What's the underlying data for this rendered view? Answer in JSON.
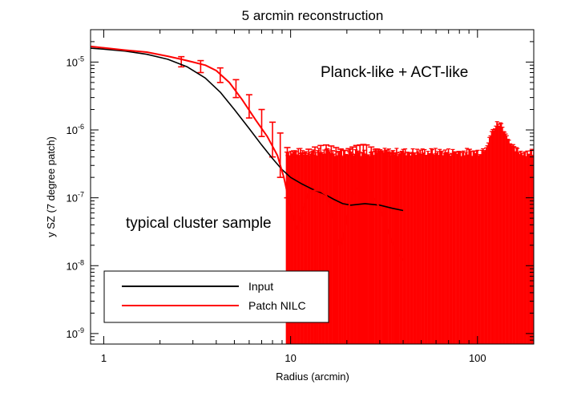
{
  "chart_data": {
    "type": "line",
    "title": "5 arcmin reconstruction",
    "xlabel": "Radius (arcmin)",
    "ylabel": "y SZ (7 degree patch)",
    "x_scale": "log",
    "y_scale": "log",
    "xlim": [
      0.85,
      200
    ],
    "ylim": [
      7e-10,
      3e-05
    ],
    "x_ticks": [
      {
        "value": 1,
        "label": "1"
      },
      {
        "value": 10,
        "label": "10"
      },
      {
        "value": 100,
        "label": "100"
      }
    ],
    "y_ticks": [
      {
        "value": 1e-09,
        "base": "10",
        "exp": "-9"
      },
      {
        "value": 1e-08,
        "base": "10",
        "exp": "-8"
      },
      {
        "value": 1e-07,
        "base": "10",
        "exp": "-7"
      },
      {
        "value": 1e-06,
        "base": "10",
        "exp": "-6"
      },
      {
        "value": 1e-05,
        "base": "10",
        "exp": "-5"
      }
    ],
    "annotations": [
      "Planck-like + ACT-like",
      "typical cluster sample"
    ],
    "legend": {
      "position": "bottom-left"
    },
    "grid": false,
    "series": [
      {
        "name": "Input",
        "color": "#000000",
        "x": [
          0.85,
          1.0,
          1.3,
          1.7,
          2.2,
          2.8,
          3.5,
          4.2,
          5.0,
          6.0,
          7.0,
          8.0,
          9.0,
          10.0,
          11.5,
          13.0,
          15.0,
          17.0,
          19.0,
          21.0,
          23.0,
          25.0,
          30.0,
          35.0,
          40.0
        ],
        "y": [
          1.6e-05,
          1.55e-05,
          1.45e-05,
          1.3e-05,
          1.1e-05,
          8.5e-06,
          5.8e-06,
          3.6e-06,
          2e-06,
          1.05e-06,
          6e-07,
          3.8e-07,
          2.6e-07,
          2e-07,
          1.6e-07,
          1.35e-07,
          1.15e-07,
          9.5e-08,
          8.2e-08,
          7.8e-08,
          8e-08,
          8.2e-08,
          7.8e-08,
          7e-08,
          6.5e-08
        ]
      },
      {
        "name": "Patch NILC",
        "color": "#ff0000",
        "x": [
          0.85,
          1.0,
          1.3,
          1.7,
          2.2,
          2.6,
          3.0,
          3.5,
          4.0,
          4.7,
          5.5,
          6.5,
          7.5,
          8.5,
          9.2,
          10.0,
          10.8,
          11.5,
          12.5,
          13.5,
          14.5,
          15.5,
          16.5,
          17.5,
          18.5,
          19.5,
          20.5,
          21.5,
          22.5,
          23.5,
          24.5,
          25.5,
          27.0,
          28.5,
          30.0,
          31.5,
          33.0,
          35.0,
          37.0,
          40.0
        ],
        "y": [
          1.7e-05,
          1.62e-05,
          1.5e-05,
          1.4e-05,
          1.22e-05,
          1.1e-05,
          1e-05,
          9e-06,
          7.5e-06,
          5e-06,
          2.8e-06,
          1.4e-06,
          8e-07,
          4.2e-07,
          2e-07,
          7e-08,
          3.5e-08,
          6e-08,
          1.2e-07,
          1.3e-07,
          1.25e-07,
          1.1e-07,
          7e-08,
          3e-08,
          1.8e-08,
          3.5e-08,
          7.5e-08,
          1.1e-07,
          1.35e-07,
          1.45e-07,
          1.4e-07,
          1.3e-07,
          1.1e-07,
          9e-08,
          7e-08,
          5e-08,
          3.5e-08,
          2.2e-08,
          1.6e-08,
          1.2e-08
        ]
      }
    ],
    "noise_band": {
      "color": "#ff0000",
      "x_start": 9.5,
      "x_end": 200,
      "count": 230,
      "typical_upper": 4.5e-07,
      "bump_center": 130,
      "bump_peak": 1.4e-06
    },
    "error_bars": [
      {
        "x": 2.6,
        "low": 8.5e-06,
        "high": 1.2e-05
      },
      {
        "x": 3.3,
        "low": 7e-06,
        "high": 1.05e-05
      },
      {
        "x": 4.2,
        "low": 5e-06,
        "high": 8.2e-06
      },
      {
        "x": 5.1,
        "low": 3e-06,
        "high": 5.5e-06
      },
      {
        "x": 6.0,
        "low": 1.5e-06,
        "high": 3.3e-06
      },
      {
        "x": 7.0,
        "low": 8e-07,
        "high": 2e-06
      },
      {
        "x": 8.0,
        "low": 4e-07,
        "high": 1.3e-06
      },
      {
        "x": 8.8,
        "low": 2e-07,
        "high": 9e-07
      },
      {
        "x": 9.6,
        "low": 1e-07,
        "high": 5.5e-07
      },
      {
        "x": 10.5,
        "low": 7e-10,
        "high": 4e-07
      },
      {
        "x": 11.5,
        "low": 7e-10,
        "high": 4.5e-07
      },
      {
        "x": 12.5,
        "low": 7e-10,
        "high": 5.2e-07
      },
      {
        "x": 13.5,
        "low": 7e-10,
        "high": 5.6e-07
      },
      {
        "x": 14.5,
        "low": 7e-10,
        "high": 5.9e-07
      },
      {
        "x": 15.5,
        "low": 7e-10,
        "high": 6e-07
      },
      {
        "x": 16.5,
        "low": 7e-10,
        "high": 5.8e-07
      },
      {
        "x": 17.5,
        "low": 7e-10,
        "high": 5.5e-07
      },
      {
        "x": 18.5,
        "low": 7e-10,
        "high": 5.2e-07
      },
      {
        "x": 19.5,
        "low": 7e-10,
        "high": 5e-07
      },
      {
        "x": 20.5,
        "low": 7e-10,
        "high": 5.3e-07
      },
      {
        "x": 21.5,
        "low": 7e-10,
        "high": 5.6e-07
      },
      {
        "x": 22.5,
        "low": 7e-10,
        "high": 5.9e-07
      },
      {
        "x": 23.5,
        "low": 7e-10,
        "high": 6e-07
      },
      {
        "x": 24.5,
        "low": 7e-10,
        "high": 6.1e-07
      },
      {
        "x": 25.5,
        "low": 7e-10,
        "high": 6e-07
      },
      {
        "x": 27.0,
        "low": 7e-10,
        "high": 5.6e-07
      },
      {
        "x": 28.5,
        "low": 7e-10,
        "high": 5.2e-07
      },
      {
        "x": 30.0,
        "low": 7e-10,
        "high": 4.9e-07
      },
      {
        "x": 32.0,
        "low": 7e-10,
        "high": 4.6e-07
      },
      {
        "x": 34.0,
        "low": 7e-10,
        "high": 4.5e-07
      },
      {
        "x": 36.5,
        "low": 7e-10,
        "high": 4.6e-07
      },
      {
        "x": 39.0,
        "low": 7e-10,
        "high": 4.7e-07
      }
    ]
  }
}
